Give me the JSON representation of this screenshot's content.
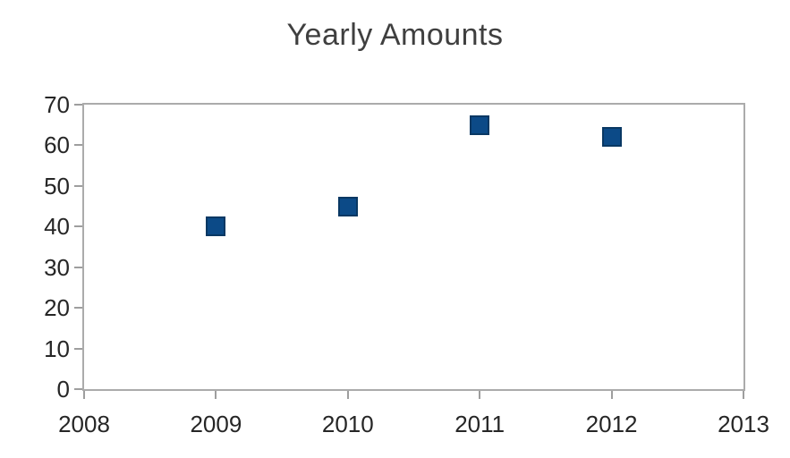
{
  "chart_data": {
    "type": "scatter",
    "title": "Yearly Amounts",
    "x": [
      2009,
      2010,
      2011,
      2012
    ],
    "y": [
      40,
      45,
      65,
      62
    ],
    "xlabel": "",
    "ylabel": "",
    "xlim": [
      2008,
      2013
    ],
    "ylim": [
      0,
      70
    ],
    "x_ticks": [
      2008,
      2009,
      2010,
      2011,
      2012,
      2013
    ],
    "y_ticks": [
      0,
      10,
      20,
      30,
      40,
      50,
      60,
      70
    ],
    "grid": false,
    "legend": false,
    "marker": "square",
    "colors": {
      "marker_fill": "#0c4a87",
      "marker_border": "#093863",
      "plot_border": "#ababab",
      "tick": "#9e9e9e",
      "tick_label": "#262626",
      "title": "#3f3f3f",
      "background": "#ffffff"
    }
  }
}
